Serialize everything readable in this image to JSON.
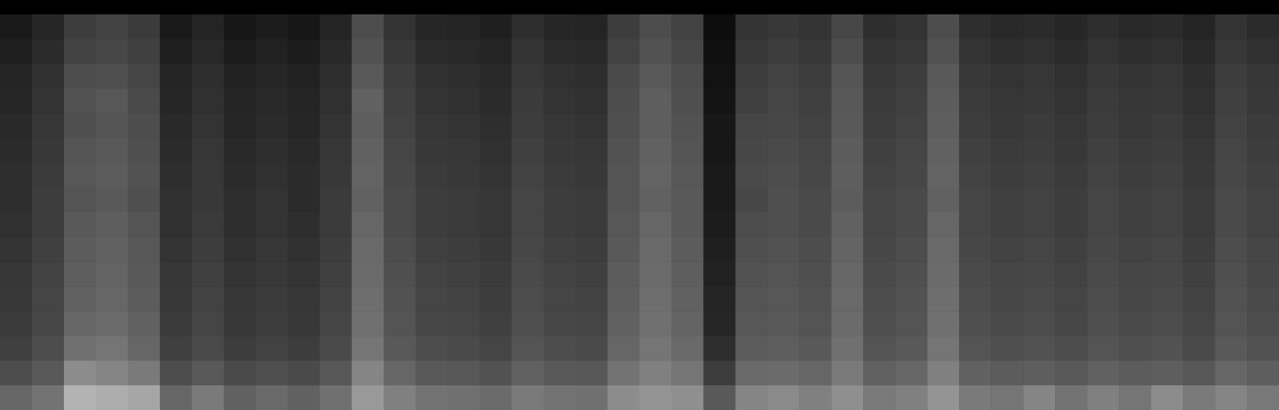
{
  "chart_data": {
    "type": "heatmap",
    "tick_labels": false,
    "zlim": [
      0,
      100
    ],
    "values": [
      [
        10,
        15,
        24,
        26,
        23,
        10,
        14,
        9,
        11,
        9,
        14,
        30,
        20,
        15,
        14,
        12,
        18,
        15,
        14,
        24,
        30,
        26,
        5,
        20,
        22,
        20,
        28,
        18,
        20,
        30,
        18,
        16,
        17,
        15,
        18,
        16,
        17,
        14,
        20,
        17
      ],
      [
        12,
        17,
        26,
        28,
        25,
        12,
        16,
        11,
        13,
        11,
        16,
        32,
        22,
        17,
        16,
        14,
        20,
        17,
        16,
        26,
        32,
        28,
        6,
        22,
        24,
        22,
        30,
        20,
        22,
        32,
        20,
        18,
        19,
        17,
        20,
        18,
        19,
        16,
        22,
        19
      ],
      [
        14,
        19,
        30,
        31,
        27,
        14,
        18,
        13,
        15,
        13,
        18,
        35,
        24,
        19,
        18,
        16,
        22,
        19,
        18,
        29,
        35,
        30,
        7,
        24,
        26,
        24,
        33,
        22,
        24,
        35,
        22,
        20,
        21,
        19,
        22,
        20,
        21,
        18,
        24,
        21
      ],
      [
        15,
        20,
        32,
        34,
        29,
        15,
        19,
        14,
        16,
        14,
        19,
        38,
        25,
        20,
        19,
        17,
        23,
        20,
        19,
        30,
        37,
        31,
        8,
        25,
        27,
        25,
        34,
        23,
        25,
        36,
        23,
        21,
        22,
        20,
        23,
        21,
        22,
        19,
        25,
        22
      ],
      [
        16,
        21,
        31,
        33,
        30,
        16,
        20,
        15,
        17,
        15,
        20,
        37,
        26,
        21,
        20,
        18,
        24,
        21,
        20,
        31,
        37,
        32,
        9,
        27,
        28,
        26,
        35,
        24,
        26,
        37,
        24,
        22,
        23,
        21,
        24,
        22,
        23,
        20,
        26,
        23
      ],
      [
        17,
        22,
        33,
        35,
        31,
        17,
        21,
        16,
        18,
        16,
        21,
        38,
        27,
        22,
        21,
        19,
        25,
        22,
        21,
        32,
        38,
        33,
        9,
        28,
        29,
        27,
        36,
        25,
        27,
        38,
        25,
        23,
        24,
        22,
        25,
        23,
        24,
        21,
        27,
        24
      ],
      [
        18,
        23,
        34,
        36,
        32,
        18,
        22,
        17,
        19,
        17,
        22,
        39,
        28,
        23,
        22,
        20,
        26,
        23,
        22,
        33,
        39,
        34,
        10,
        29,
        30,
        28,
        37,
        26,
        28,
        39,
        26,
        24,
        25,
        23,
        26,
        24,
        25,
        22,
        28,
        25
      ],
      [
        18,
        24,
        33,
        35,
        31,
        19,
        22,
        18,
        20,
        17,
        23,
        38,
        29,
        24,
        23,
        21,
        27,
        24,
        23,
        33,
        38,
        35,
        10,
        28,
        31,
        29,
        36,
        27,
        29,
        38,
        27,
        25,
        26,
        24,
        27,
        25,
        26,
        23,
        29,
        26
      ],
      [
        19,
        24,
        35,
        37,
        33,
        19,
        23,
        18,
        20,
        18,
        23,
        40,
        29,
        24,
        23,
        21,
        27,
        24,
        23,
        34,
        40,
        35,
        11,
        30,
        31,
        29,
        38,
        27,
        29,
        40,
        27,
        25,
        26,
        24,
        27,
        25,
        26,
        23,
        29,
        26
      ],
      [
        20,
        25,
        36,
        38,
        34,
        20,
        24,
        19,
        21,
        19,
        24,
        41,
        30,
        25,
        24,
        22,
        28,
        25,
        24,
        35,
        41,
        36,
        12,
        31,
        32,
        30,
        39,
        28,
        30,
        41,
        28,
        26,
        27,
        25,
        28,
        26,
        27,
        24,
        30,
        27
      ],
      [
        21,
        26,
        37,
        39,
        35,
        21,
        25,
        20,
        22,
        20,
        25,
        42,
        31,
        26,
        25,
        23,
        29,
        26,
        25,
        36,
        42,
        37,
        13,
        32,
        33,
        31,
        40,
        29,
        31,
        42,
        29,
        27,
        28,
        26,
        29,
        27,
        28,
        25,
        31,
        28
      ],
      [
        22,
        27,
        38,
        40,
        36,
        22,
        26,
        21,
        23,
        21,
        26,
        43,
        32,
        27,
        26,
        24,
        30,
        27,
        26,
        37,
        43,
        38,
        14,
        33,
        34,
        32,
        41,
        30,
        32,
        43,
        30,
        28,
        29,
        27,
        30,
        28,
        29,
        26,
        32,
        29
      ],
      [
        23,
        28,
        40,
        42,
        38,
        23,
        27,
        22,
        24,
        22,
        27,
        44,
        33,
        28,
        27,
        25,
        31,
        28,
        27,
        38,
        44,
        39,
        15,
        34,
        35,
        33,
        42,
        31,
        33,
        44,
        31,
        29,
        30,
        28,
        31,
        29,
        30,
        27,
        33,
        30
      ],
      [
        25,
        30,
        44,
        46,
        40,
        25,
        29,
        24,
        26,
        24,
        29,
        46,
        35,
        30,
        29,
        27,
        33,
        30,
        29,
        40,
        46,
        41,
        18,
        36,
        37,
        35,
        44,
        33,
        35,
        46,
        33,
        31,
        32,
        30,
        33,
        31,
        32,
        29,
        35,
        32
      ],
      [
        30,
        35,
        55,
        52,
        48,
        30,
        35,
        29,
        31,
        29,
        34,
        52,
        40,
        35,
        34,
        32,
        38,
        35,
        34,
        45,
        50,
        46,
        24,
        41,
        42,
        40,
        48,
        38,
        40,
        50,
        38,
        36,
        37,
        35,
        38,
        36,
        37,
        34,
        40,
        37
      ],
      [
        40,
        45,
        70,
        68,
        65,
        40,
        48,
        38,
        41,
        38,
        44,
        60,
        50,
        45,
        44,
        42,
        48,
        45,
        44,
        55,
        58,
        56,
        35,
        52,
        54,
        50,
        56,
        48,
        50,
        58,
        48,
        46,
        52,
        45,
        50,
        46,
        55,
        48,
        52,
        47
      ]
    ]
  }
}
